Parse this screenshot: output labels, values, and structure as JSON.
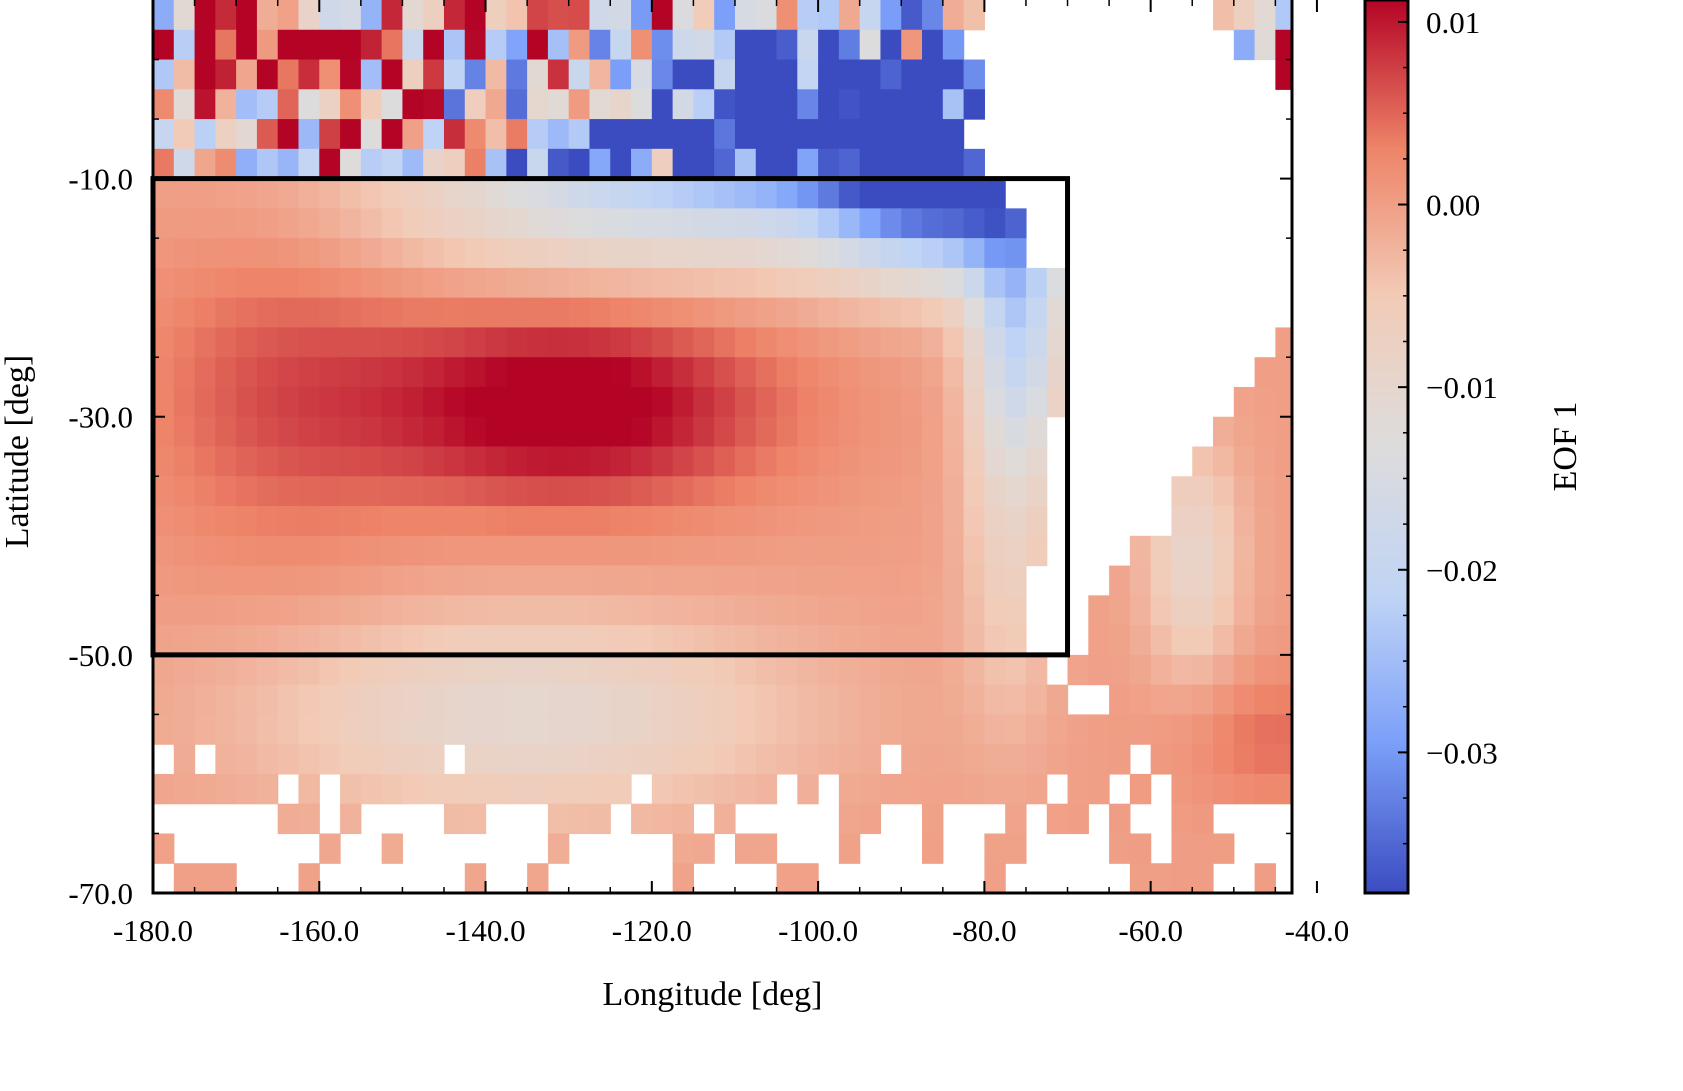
{
  "chart_data": {
    "type": "heatmap",
    "title": "",
    "xlabel": "Longitude [deg]",
    "ylabel": "Latitude [deg]",
    "xlim": [
      -180,
      -43
    ],
    "ylim": [
      -70,
      5
    ],
    "x_ticks": [
      -180,
      -160,
      -140,
      -120,
      -100,
      -80,
      -60,
      -40
    ],
    "x_tick_labels": [
      "-180.0",
      "-160.0",
      "-140.0",
      "-120.0",
      "-100.0",
      "-80.0",
      "-60.0",
      "-40.0"
    ],
    "y_ticks": [
      -10,
      -30,
      -50,
      -70
    ],
    "y_tick_labels": [
      "-10.0",
      "-30.0",
      "-50.0",
      "-70.0"
    ],
    "colorbar": {
      "label": "EOF 1",
      "range": [
        -0.0377,
        0.0112
      ],
      "ticks": [
        0.01,
        0.0,
        -0.01,
        -0.02,
        -0.03
      ],
      "tick_labels": [
        "0.01",
        "0.00",
        "−0.01",
        "−0.02",
        "−0.03"
      ],
      "colormap": "coolwarm",
      "colors": [
        "#3b4cc0",
        "#7b9ff9",
        "#c0d4f5",
        "#dddcdc",
        "#f2cbb7",
        "#ee8468",
        "#b40426"
      ]
    },
    "grid_resolution_deg": 2.5,
    "land": "South America (masked, white)",
    "box": {
      "lon": [
        -180,
        -70
      ],
      "lat": [
        -50,
        -10
      ],
      "color": "#000000"
    },
    "field_summary": "Positive EOF-1 maximum (~0.011) centered near 130W, 30S; negative values (~-0.037) along the equator from 120W to 80W and along the South American coast; weakly positive (~0.00) values elsewhere in the South Pacific and South Atlantic."
  }
}
